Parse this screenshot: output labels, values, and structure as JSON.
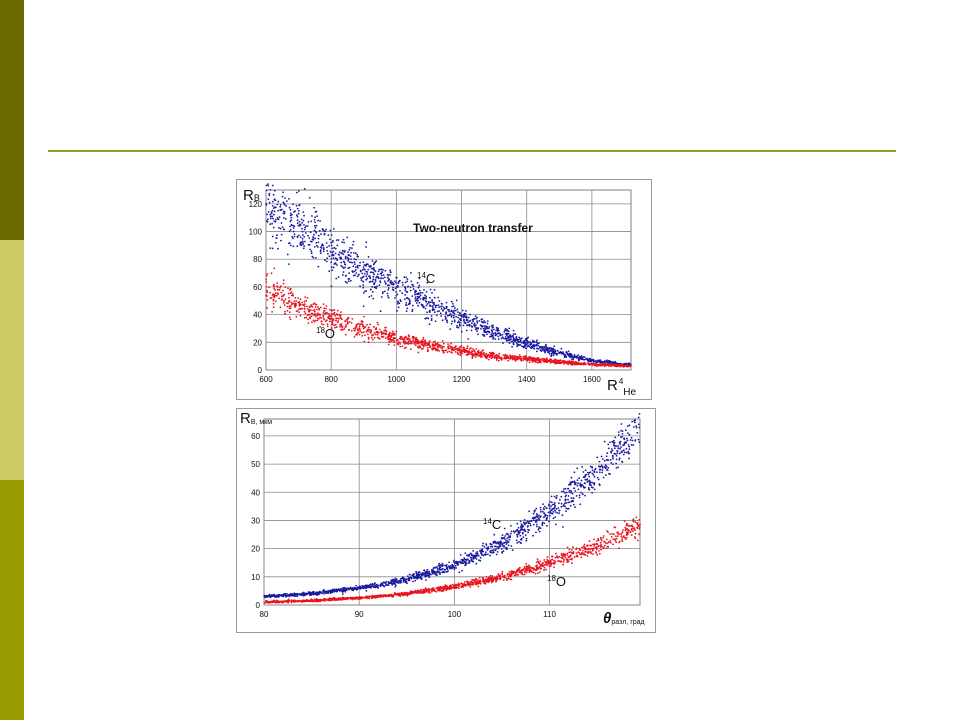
{
  "slide": {
    "colors": {
      "band_dark": "#6b6b00",
      "band_light": "#cccc66",
      "band_mid": "#999900",
      "rule": "#999933"
    }
  },
  "chart_data": [
    {
      "type": "scatter",
      "title": "Two-neutron transfer",
      "ylabel": "R",
      "ylabel_sub": "B",
      "xlabel": "R",
      "xlabel_sup": "4",
      "xlabel_sub": "He",
      "xlim": [
        600,
        1720
      ],
      "ylim": [
        0,
        130
      ],
      "x_ticks": [
        600,
        800,
        1000,
        1200,
        1400,
        1600
      ],
      "y_ticks": [
        0,
        20,
        40,
        60,
        80,
        100,
        120
      ],
      "grid": true,
      "series": [
        {
          "name": "14C",
          "label_mass": "14",
          "label_element": "C",
          "color": "#1a1aa0",
          "trend": [
            [
              600,
              121
            ],
            [
              700,
              103
            ],
            [
              800,
              86
            ],
            [
              900,
              72
            ],
            [
              1000,
              60
            ],
            [
              1100,
              48
            ],
            [
              1200,
              37
            ],
            [
              1300,
              27
            ],
            [
              1400,
              19
            ],
            [
              1500,
              12
            ],
            [
              1600,
              7
            ],
            [
              1700,
              4
            ]
          ],
          "spread_pct": 0.11
        },
        {
          "name": "18O",
          "label_mass": "18",
          "label_element": "O",
          "color": "#e8141e",
          "trend": [
            [
              600,
              58
            ],
            [
              700,
              46
            ],
            [
              800,
              37
            ],
            [
              900,
              30
            ],
            [
              1000,
              23
            ],
            [
              1100,
              18
            ],
            [
              1200,
              14
            ],
            [
              1300,
              10
            ],
            [
              1400,
              8
            ],
            [
              1500,
              6
            ],
            [
              1600,
              4
            ],
            [
              1700,
              3
            ]
          ],
          "spread_pct": 0.11
        }
      ]
    },
    {
      "type": "scatter",
      "ylabel": "R",
      "ylabel_sub": "B, мкм",
      "xlabel": "θ",
      "xlabel_sub": "разл, град",
      "xlim": [
        80,
        119.5
      ],
      "ylim": [
        0,
        66
      ],
      "x_ticks": [
        80,
        90,
        100,
        110
      ],
      "y_ticks": [
        0,
        10,
        20,
        30,
        40,
        50,
        60
      ],
      "grid": true,
      "series": [
        {
          "name": "14C",
          "label_mass": "14",
          "label_element": "C",
          "color": "#1a1aa0",
          "trend": [
            [
              80,
              3
            ],
            [
              85,
              4
            ],
            [
              90,
              6
            ],
            [
              95,
              9
            ],
            [
              100,
              14
            ],
            [
              105,
              22
            ],
            [
              110,
              33
            ],
            [
              115,
              47
            ],
            [
              119.5,
              63
            ]
          ],
          "spread_pct": 0.07
        },
        {
          "name": "18O",
          "label_mass": "18",
          "label_element": "O",
          "color": "#e8141e",
          "trend": [
            [
              80,
              1
            ],
            [
              85,
              1.5
            ],
            [
              90,
              2.5
            ],
            [
              95,
              4
            ],
            [
              100,
              6.5
            ],
            [
              105,
              10
            ],
            [
              110,
              15
            ],
            [
              115,
              21
            ],
            [
              119.5,
              28
            ]
          ],
          "spread_pct": 0.07
        }
      ]
    }
  ]
}
